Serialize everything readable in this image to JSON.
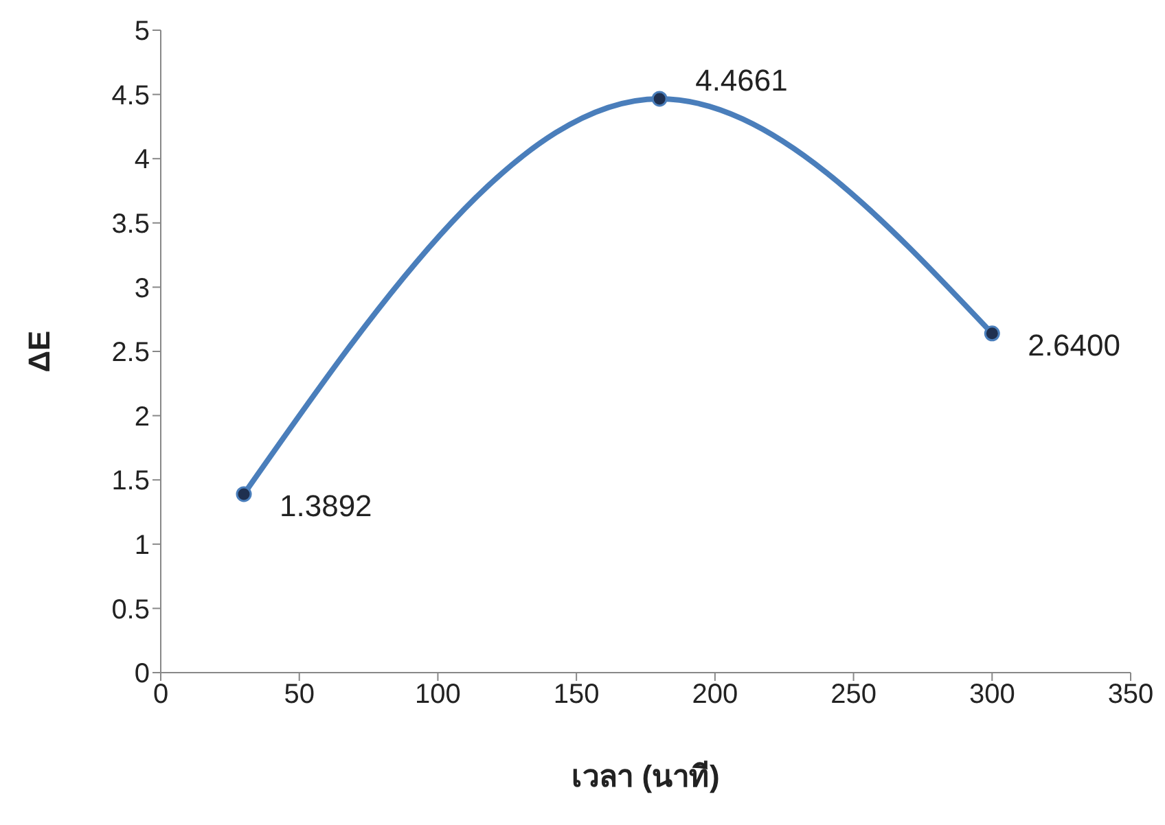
{
  "chart_data": {
    "type": "line",
    "xlabel": "เวลา (นาที)",
    "ylabel": "ΔE",
    "x": [
      30,
      180,
      300
    ],
    "series": [
      {
        "color": "#4a7ebb",
        "values": [
          1.3892,
          4.4661,
          2.64
        ],
        "value_labels": [
          "1.3892",
          "4.4661",
          "2.6400"
        ]
      }
    ],
    "xlim": [
      0,
      350
    ],
    "xticks": [
      0,
      50,
      100,
      150,
      200,
      250,
      300,
      350
    ],
    "ylim": [
      0,
      5
    ],
    "yticks": [
      0,
      0.5,
      1,
      1.5,
      2,
      2.5,
      3,
      3.5,
      4,
      4.5,
      5
    ],
    "marker": "circle",
    "line_style": "solid"
  }
}
